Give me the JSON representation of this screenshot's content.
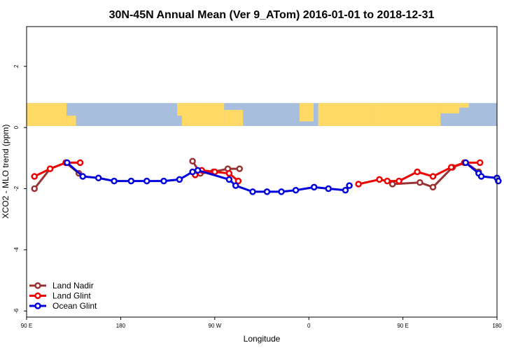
{
  "chart_data": {
    "type": "line",
    "title": "30N-45N Annual Mean (Ver 9_ATom)   2016-01-01 to 2018-12-31",
    "xlabel": "Longitude",
    "ylabel": "XCO2 - MLO trend (ppm)",
    "xlim": [
      90,
      450
    ],
    "ylim": [
      -6.2,
      3.3
    ],
    "x_ticks": [
      {
        "value": 90,
        "label": "90 E"
      },
      {
        "value": 162,
        "label": "180"
      },
      {
        "value": 234,
        "label": "90 W"
      },
      {
        "value": 306,
        "label": "0"
      },
      {
        "value": 378,
        "label": "90 E"
      },
      {
        "value": 450,
        "label": "180"
      }
    ],
    "y_ticks": [
      {
        "value": 2,
        "label": "2"
      },
      {
        "value": 0,
        "label": "0"
      },
      {
        "value": -2,
        "label": "-2"
      },
      {
        "value": -4,
        "label": "-4"
      },
      {
        "value": -6,
        "label": "-6"
      }
    ],
    "map_band": {
      "ymin": 0.05,
      "ymax": 0.8,
      "land_color": "#ffd966",
      "ocean_color": "#a8bedd"
    },
    "legend_position": "bottom-left",
    "grid": false,
    "series": [
      {
        "name": "Land Nadir",
        "color": "#993333",
        "segments": [
          [
            [
              96,
              -2.0
            ],
            [
              108,
              -1.35
            ],
            [
              120,
              -1.15
            ],
            [
              130,
              -1.5
            ]
          ],
          [
            [
              217,
              -1.1
            ],
            [
              223,
              -1.5
            ],
            [
              233,
              -1.45
            ],
            [
              244,
              -1.35
            ],
            [
              253,
              -1.35
            ]
          ],
          [
            [
              370,
              -1.85
            ],
            [
              391,
              -1.8
            ],
            [
              401,
              -1.95
            ],
            [
              416,
              -1.3
            ],
            [
              426,
              -1.15
            ],
            [
              436,
              -1.45
            ]
          ]
        ]
      },
      {
        "name": "Land Glint",
        "color": "#ee0000",
        "segments": [
          [
            [
              96,
              -1.6
            ],
            [
              108,
              -1.35
            ],
            [
              120,
              -1.15
            ],
            [
              131,
              -1.15
            ]
          ],
          [
            [
              219,
              -1.55
            ],
            [
              224,
              -1.4
            ],
            [
              234,
              -1.45
            ],
            [
              245,
              -1.5
            ],
            [
              252,
              -1.75
            ]
          ],
          [
            [
              344,
              -1.85
            ],
            [
              360,
              -1.7
            ],
            [
              366,
              -1.75
            ],
            [
              375,
              -1.75
            ],
            [
              389,
              -1.45
            ],
            [
              401,
              -1.6
            ],
            [
              415,
              -1.3
            ],
            [
              425,
              -1.15
            ],
            [
              437,
              -1.15
            ]
          ]
        ]
      },
      {
        "name": "Ocean Glint",
        "color": "#0000dd",
        "segments": [
          [
            [
              121,
              -1.15
            ],
            [
              133,
              -1.6
            ],
            [
              145,
              -1.65
            ],
            [
              157,
              -1.75
            ],
            [
              170,
              -1.75
            ],
            [
              182,
              -1.75
            ],
            [
              195,
              -1.75
            ],
            [
              207,
              -1.7
            ],
            [
              217,
              -1.45
            ],
            [
              221,
              -1.4
            ],
            [
              245,
              -1.7
            ],
            [
              250,
              -1.9
            ],
            [
              263,
              -2.1
            ],
            [
              274,
              -2.1
            ],
            [
              285,
              -2.1
            ],
            [
              296,
              -2.05
            ],
            [
              310,
              -1.95
            ],
            [
              321,
              -2.0
            ],
            [
              334,
              -2.05
            ],
            [
              337,
              -1.9
            ]
          ],
          [
            [
              426,
              -1.15
            ],
            [
              436,
              -1.5
            ],
            [
              438,
              -1.6
            ],
            [
              450,
              -1.65
            ],
            [
              451,
              -1.75
            ]
          ]
        ]
      }
    ]
  }
}
